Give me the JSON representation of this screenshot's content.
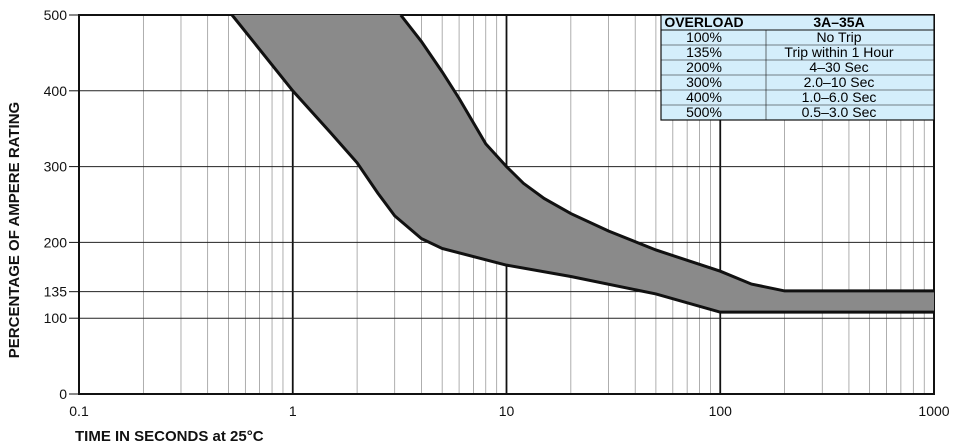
{
  "chart_data": {
    "type": "area",
    "title": "",
    "xlabel": "TIME IN SECONDS at 25°C",
    "ylabel": "PERCENTAGE OF AMPERE RATING",
    "x_scale": "log",
    "xlim": [
      0.1,
      1000
    ],
    "ylim": [
      0,
      500
    ],
    "x_ticks": [
      {
        "value": 0.1,
        "label": "0.1"
      },
      {
        "value": 1,
        "label": "1"
      },
      {
        "value": 10,
        "label": "10"
      },
      {
        "value": 100,
        "label": "100"
      },
      {
        "value": 1000,
        "label": "1000"
      }
    ],
    "y_ticks": [
      {
        "value": 0,
        "label": "0"
      },
      {
        "value": 100,
        "label": "100"
      },
      {
        "value": 135,
        "label": "135"
      },
      {
        "value": 200,
        "label": "200"
      },
      {
        "value": 300,
        "label": "300"
      },
      {
        "value": 400,
        "label": "400"
      },
      {
        "value": 500,
        "label": "500"
      }
    ],
    "grid": true,
    "band": {
      "fill": "#8a8a8a",
      "upper": [
        {
          "x": 3.2,
          "y": 500
        },
        {
          "x": 4.0,
          "y": 465
        },
        {
          "x": 5.0,
          "y": 425
        },
        {
          "x": 6.0,
          "y": 390
        },
        {
          "x": 8.0,
          "y": 330
        },
        {
          "x": 10,
          "y": 300
        },
        {
          "x": 12,
          "y": 278
        },
        {
          "x": 15,
          "y": 258
        },
        {
          "x": 20,
          "y": 238
        },
        {
          "x": 30,
          "y": 215
        },
        {
          "x": 50,
          "y": 190
        },
        {
          "x": 100,
          "y": 162
        },
        {
          "x": 140,
          "y": 145
        },
        {
          "x": 200,
          "y": 136
        },
        {
          "x": 1000,
          "y": 136
        }
      ],
      "lower": [
        {
          "x": 0.52,
          "y": 500
        },
        {
          "x": 1.0,
          "y": 400
        },
        {
          "x": 1.5,
          "y": 345
        },
        {
          "x": 2.0,
          "y": 305
        },
        {
          "x": 2.5,
          "y": 265
        },
        {
          "x": 3.0,
          "y": 235
        },
        {
          "x": 4.0,
          "y": 205
        },
        {
          "x": 5.0,
          "y": 192
        },
        {
          "x": 10,
          "y": 170
        },
        {
          "x": 20,
          "y": 155
        },
        {
          "x": 50,
          "y": 132
        },
        {
          "x": 100,
          "y": 108
        },
        {
          "x": 1000,
          "y": 108
        }
      ]
    },
    "legend_table": {
      "placement": "top-right",
      "background": "#d4eefb",
      "header": [
        "OVERLOAD",
        "3A–35A"
      ],
      "rows": [
        [
          "100%",
          "No Trip"
        ],
        [
          "135%",
          "Trip within 1 Hour"
        ],
        [
          "200%",
          "4–30 Sec"
        ],
        [
          "300%",
          "2.0–10 Sec"
        ],
        [
          "400%",
          "1.0–6.0 Sec"
        ],
        [
          "500%",
          "0.5–3.0 Sec"
        ]
      ]
    }
  }
}
